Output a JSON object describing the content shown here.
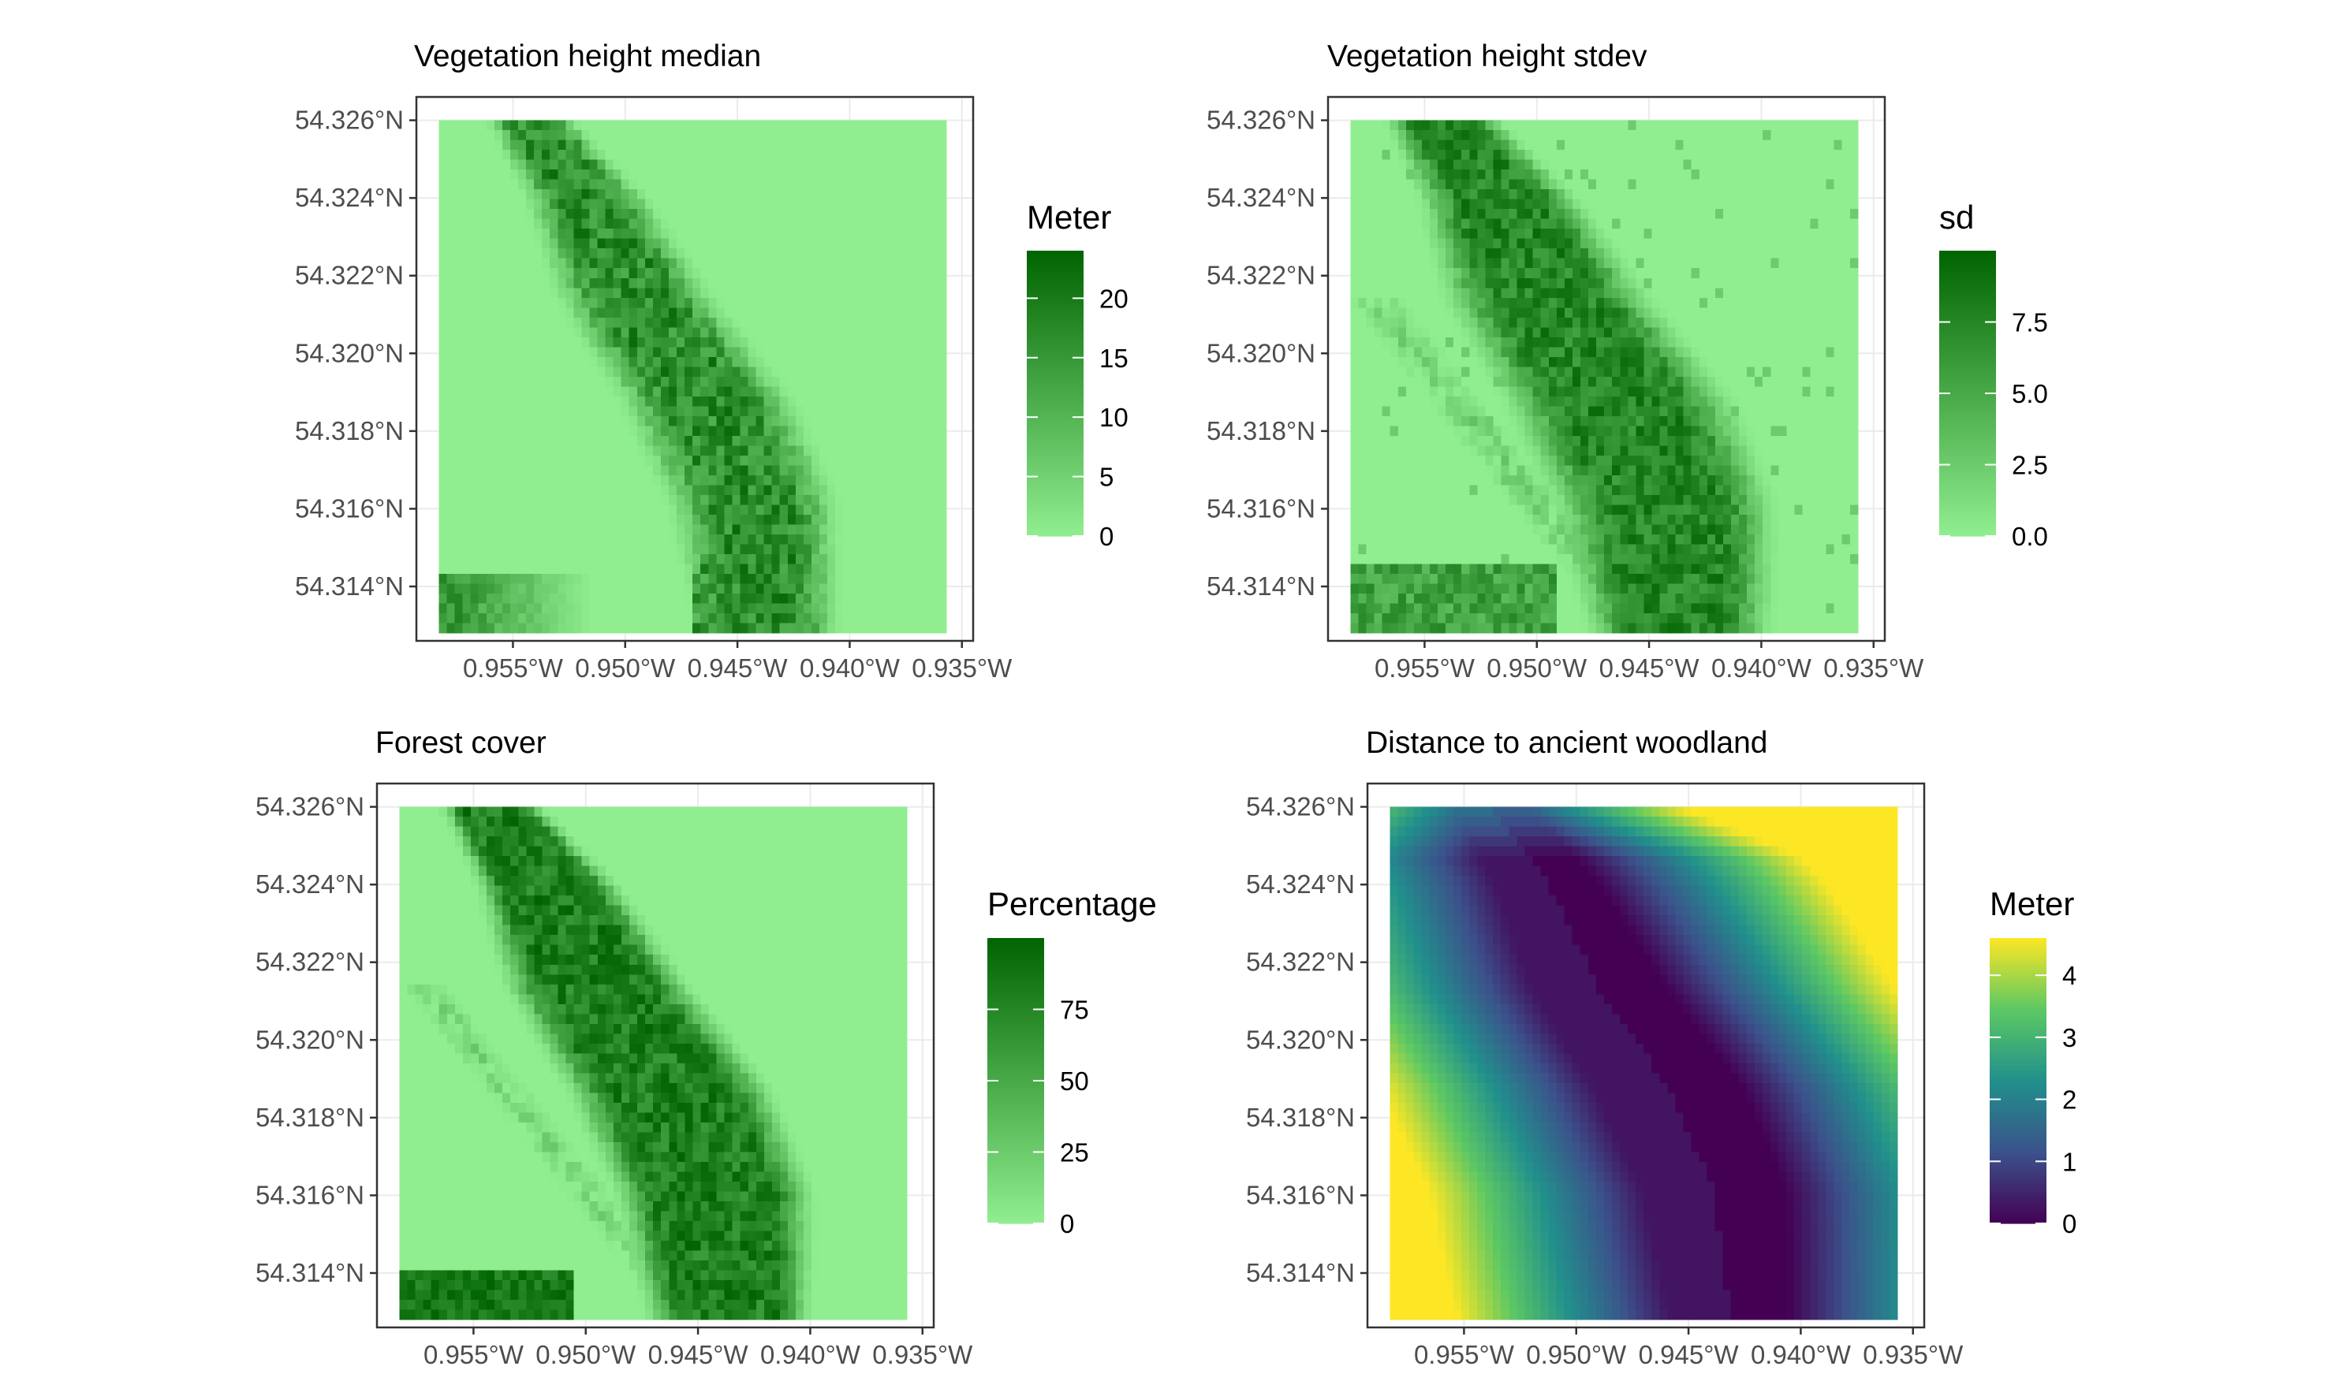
{
  "chart_data": [
    {
      "type": "heatmap",
      "title": "Vegetation height median",
      "xlabel": "",
      "ylabel": "",
      "x_ticks": [
        "0.955°W",
        "0.950°W",
        "0.945°W",
        "0.940°W",
        "0.935°W"
      ],
      "y_ticks": [
        "54.326°N",
        "54.324°N",
        "54.322°N",
        "54.320°N",
        "54.318°N",
        "54.316°N",
        "54.314°N"
      ],
      "x_range": [
        -0.9593,
        -0.9345
      ],
      "y_range": [
        54.3126,
        54.3266
      ],
      "legend": {
        "title": "Meter",
        "ticks": [
          "0",
          "5",
          "10",
          "15",
          "20"
        ],
        "range": [
          0,
          24
        ],
        "colors": [
          "#90EE90",
          "#006400"
        ]
      },
      "grid": true,
      "legend_position": "right"
    },
    {
      "type": "heatmap",
      "title": "Vegetation height stdev",
      "xlabel": "",
      "ylabel": "",
      "x_ticks": [
        "0.955°W",
        "0.950°W",
        "0.945°W",
        "0.940°W",
        "0.935°W"
      ],
      "y_ticks": [
        "54.326°N",
        "54.324°N",
        "54.322°N",
        "54.320°N",
        "54.318°N",
        "54.316°N",
        "54.314°N"
      ],
      "x_range": [
        -0.9593,
        -0.9345
      ],
      "y_range": [
        54.3126,
        54.3266
      ],
      "legend": {
        "title": "sd",
        "ticks": [
          "0.0",
          "2.5",
          "5.0",
          "7.5"
        ],
        "range": [
          0,
          10
        ],
        "colors": [
          "#90EE90",
          "#006400"
        ]
      },
      "grid": true,
      "legend_position": "right"
    },
    {
      "type": "heatmap",
      "title": "Forest cover",
      "xlabel": "",
      "ylabel": "",
      "x_ticks": [
        "0.955°W",
        "0.950°W",
        "0.945°W",
        "0.940°W",
        "0.935°W"
      ],
      "y_ticks": [
        "54.326°N",
        "54.324°N",
        "54.322°N",
        "54.320°N",
        "54.318°N",
        "54.316°N",
        "54.314°N"
      ],
      "x_range": [
        -0.9593,
        -0.9345
      ],
      "y_range": [
        54.3126,
        54.3266
      ],
      "legend": {
        "title": "Percentage",
        "ticks": [
          "0",
          "25",
          "50",
          "75"
        ],
        "range": [
          0,
          100
        ],
        "colors": [
          "#90EE90",
          "#006400"
        ]
      },
      "grid": true,
      "legend_position": "right"
    },
    {
      "type": "heatmap",
      "title": "Distance to ancient woodland",
      "xlabel": "",
      "ylabel": "",
      "x_ticks": [
        "0.955°W",
        "0.950°W",
        "0.945°W",
        "0.940°W",
        "0.935°W"
      ],
      "y_ticks": [
        "54.326°N",
        "54.324°N",
        "54.322°N",
        "54.320°N",
        "54.318°N",
        "54.316°N",
        "54.314°N"
      ],
      "x_range": [
        -0.9593,
        -0.9345
      ],
      "y_range": [
        54.3126,
        54.3266
      ],
      "legend": {
        "title": "Meter",
        "ticks": [
          "0",
          "1",
          "2",
          "3",
          "4"
        ],
        "range": [
          0,
          4.6
        ],
        "colors": [
          "#440154",
          "#3B528B",
          "#21908C",
          "#5DC863",
          "#FDE725"
        ]
      },
      "grid": true,
      "legend_position": "right"
    }
  ]
}
